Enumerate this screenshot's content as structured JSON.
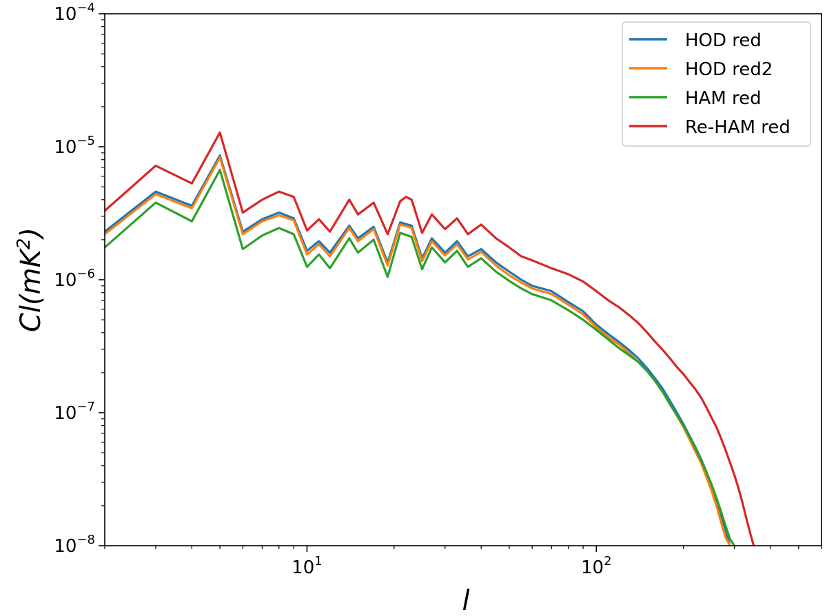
{
  "chart_data": {
    "type": "line",
    "xscale": "log",
    "yscale": "log",
    "xlim": [
      2,
      600
    ],
    "ylim": [
      1e-08,
      0.0001
    ],
    "xlabel": "l",
    "ylabel": "Cl(mK^2)",
    "xticks": [
      {
        "value": 10,
        "base": "10",
        "exp": "1"
      },
      {
        "value": 100,
        "base": "10",
        "exp": "2"
      }
    ],
    "yticks": [
      {
        "value": 1e-08,
        "base": "10",
        "exp": "−8"
      },
      {
        "value": 1e-07,
        "base": "10",
        "exp": "−7"
      },
      {
        "value": 1e-06,
        "base": "10",
        "exp": "−6"
      },
      {
        "value": 1e-05,
        "base": "10",
        "exp": "−5"
      },
      {
        "value": 0.0001,
        "base": "10",
        "exp": "−4"
      }
    ],
    "legend_position": "top-right",
    "grid": false,
    "series": [
      {
        "name": "HOD red",
        "color": "#1f77b4",
        "points": [
          [
            2,
            2.3e-06
          ],
          [
            3,
            4.6e-06
          ],
          [
            4,
            3.6e-06
          ],
          [
            5,
            8.6e-06
          ],
          [
            6,
            2.3e-06
          ],
          [
            7,
            2.85e-06
          ],
          [
            8,
            3.2e-06
          ],
          [
            9,
            2.9e-06
          ],
          [
            10,
            1.65e-06
          ],
          [
            11,
            1.95e-06
          ],
          [
            12,
            1.6e-06
          ],
          [
            14,
            2.55e-06
          ],
          [
            15,
            2.05e-06
          ],
          [
            17,
            2.5e-06
          ],
          [
            19,
            1.35e-06
          ],
          [
            21,
            2.7e-06
          ],
          [
            23,
            2.55e-06
          ],
          [
            25,
            1.45e-06
          ],
          [
            27,
            2.05e-06
          ],
          [
            30,
            1.6e-06
          ],
          [
            33,
            1.95e-06
          ],
          [
            36,
            1.5e-06
          ],
          [
            40,
            1.7e-06
          ],
          [
            45,
            1.35e-06
          ],
          [
            50,
            1.15e-06
          ],
          [
            55,
            1e-06
          ],
          [
            60,
            9e-07
          ],
          [
            70,
            8.2e-07
          ],
          [
            80,
            6.8e-07
          ],
          [
            90,
            5.8e-07
          ],
          [
            100,
            4.6e-07
          ],
          [
            110,
            3.9e-07
          ],
          [
            120,
            3.4e-07
          ],
          [
            130,
            2.95e-07
          ],
          [
            140,
            2.55e-07
          ],
          [
            150,
            2.15e-07
          ],
          [
            160,
            1.8e-07
          ],
          [
            170,
            1.5e-07
          ],
          [
            180,
            1.22e-07
          ],
          [
            190,
            1e-07
          ],
          [
            200,
            8.2e-08
          ],
          [
            210,
            6.7e-08
          ],
          [
            220,
            5.5e-08
          ],
          [
            230,
            4.5e-08
          ],
          [
            240,
            3.6e-08
          ],
          [
            250,
            2.8e-08
          ],
          [
            260,
            2.1e-08
          ],
          [
            270,
            1.6e-08
          ],
          [
            280,
            1.25e-08
          ],
          [
            290,
            1e-08
          ]
        ]
      },
      {
        "name": "HOD red2",
        "color": "#ff7f0e",
        "points": [
          [
            2,
            2.2e-06
          ],
          [
            3,
            4.4e-06
          ],
          [
            4,
            3.45e-06
          ],
          [
            5,
            8.3e-06
          ],
          [
            6,
            2.2e-06
          ],
          [
            7,
            2.75e-06
          ],
          [
            8,
            3.05e-06
          ],
          [
            9,
            2.8e-06
          ],
          [
            10,
            1.55e-06
          ],
          [
            11,
            1.85e-06
          ],
          [
            12,
            1.5e-06
          ],
          [
            14,
            2.45e-06
          ],
          [
            15,
            1.95e-06
          ],
          [
            17,
            2.4e-06
          ],
          [
            19,
            1.28e-06
          ],
          [
            21,
            2.6e-06
          ],
          [
            23,
            2.45e-06
          ],
          [
            25,
            1.38e-06
          ],
          [
            27,
            1.95e-06
          ],
          [
            30,
            1.52e-06
          ],
          [
            33,
            1.85e-06
          ],
          [
            36,
            1.42e-06
          ],
          [
            40,
            1.62e-06
          ],
          [
            45,
            1.28e-06
          ],
          [
            50,
            1.08e-06
          ],
          [
            55,
            9.5e-07
          ],
          [
            60,
            8.6e-07
          ],
          [
            70,
            7.8e-07
          ],
          [
            80,
            6.5e-07
          ],
          [
            90,
            5.5e-07
          ],
          [
            100,
            4.4e-07
          ],
          [
            110,
            3.7e-07
          ],
          [
            120,
            3.25e-07
          ],
          [
            130,
            2.8e-07
          ],
          [
            140,
            2.4e-07
          ],
          [
            150,
            2.05e-07
          ],
          [
            160,
            1.72e-07
          ],
          [
            170,
            1.42e-07
          ],
          [
            180,
            1.15e-07
          ],
          [
            190,
            9.5e-08
          ],
          [
            200,
            7.8e-08
          ],
          [
            210,
            6.3e-08
          ],
          [
            220,
            5.1e-08
          ],
          [
            230,
            4.2e-08
          ],
          [
            240,
            3.3e-08
          ],
          [
            250,
            2.6e-08
          ],
          [
            260,
            2e-08
          ],
          [
            270,
            1.5e-08
          ],
          [
            280,
            1.15e-08
          ],
          [
            290,
            1e-08
          ]
        ]
      },
      {
        "name": "HAM red",
        "color": "#2ca02c",
        "points": [
          [
            2,
            1.75e-06
          ],
          [
            3,
            3.8e-06
          ],
          [
            4,
            2.75e-06
          ],
          [
            5,
            6.7e-06
          ],
          [
            6,
            1.7e-06
          ],
          [
            7,
            2.15e-06
          ],
          [
            8,
            2.45e-06
          ],
          [
            9,
            2.2e-06
          ],
          [
            10,
            1.25e-06
          ],
          [
            11,
            1.55e-06
          ],
          [
            12,
            1.22e-06
          ],
          [
            14,
            2.05e-06
          ],
          [
            15,
            1.6e-06
          ],
          [
            17,
            2e-06
          ],
          [
            19,
            1.05e-06
          ],
          [
            21,
            2.25e-06
          ],
          [
            23,
            2.1e-06
          ],
          [
            25,
            1.2e-06
          ],
          [
            27,
            1.75e-06
          ],
          [
            30,
            1.35e-06
          ],
          [
            33,
            1.65e-06
          ],
          [
            36,
            1.25e-06
          ],
          [
            40,
            1.45e-06
          ],
          [
            45,
            1.15e-06
          ],
          [
            50,
            9.8e-07
          ],
          [
            55,
            8.6e-07
          ],
          [
            60,
            7.8e-07
          ],
          [
            70,
            7e-07
          ],
          [
            80,
            5.9e-07
          ],
          [
            90,
            5e-07
          ],
          [
            100,
            4.2e-07
          ],
          [
            110,
            3.55e-07
          ],
          [
            120,
            3.05e-07
          ],
          [
            130,
            2.7e-07
          ],
          [
            140,
            2.4e-07
          ],
          [
            150,
            2.05e-07
          ],
          [
            160,
            1.72e-07
          ],
          [
            170,
            1.42e-07
          ],
          [
            180,
            1.15e-07
          ],
          [
            190,
            9.6e-08
          ],
          [
            200,
            8e-08
          ],
          [
            210,
            6.6e-08
          ],
          [
            220,
            5.4e-08
          ],
          [
            230,
            4.4e-08
          ],
          [
            240,
            3.6e-08
          ],
          [
            250,
            2.9e-08
          ],
          [
            260,
            2.3e-08
          ],
          [
            270,
            1.8e-08
          ],
          [
            280,
            1.4e-08
          ],
          [
            290,
            1.12e-08
          ],
          [
            300,
            1e-08
          ]
        ]
      },
      {
        "name": "Re-HAM red",
        "color": "#d62728",
        "points": [
          [
            2,
            3.3e-06
          ],
          [
            3,
            7.2e-06
          ],
          [
            4,
            5.3e-06
          ],
          [
            5,
            1.28e-05
          ],
          [
            6,
            3.2e-06
          ],
          [
            7,
            4e-06
          ],
          [
            8,
            4.6e-06
          ],
          [
            9,
            4.2e-06
          ],
          [
            10,
            2.35e-06
          ],
          [
            11,
            2.85e-06
          ],
          [
            12,
            2.3e-06
          ],
          [
            14,
            4e-06
          ],
          [
            15,
            3.1e-06
          ],
          [
            17,
            3.8e-06
          ],
          [
            19,
            2.2e-06
          ],
          [
            21,
            3.9e-06
          ],
          [
            22,
            4.2e-06
          ],
          [
            23,
            4e-06
          ],
          [
            25,
            2.25e-06
          ],
          [
            27,
            3.1e-06
          ],
          [
            30,
            2.4e-06
          ],
          [
            33,
            2.9e-06
          ],
          [
            36,
            2.2e-06
          ],
          [
            40,
            2.6e-06
          ],
          [
            45,
            2.05e-06
          ],
          [
            50,
            1.75e-06
          ],
          [
            55,
            1.5e-06
          ],
          [
            60,
            1.4e-06
          ],
          [
            70,
            1.22e-06
          ],
          [
            80,
            1.1e-06
          ],
          [
            90,
            9.7e-07
          ],
          [
            100,
            8.2e-07
          ],
          [
            110,
            7e-07
          ],
          [
            120,
            6.2e-07
          ],
          [
            130,
            5.4e-07
          ],
          [
            140,
            4.7e-07
          ],
          [
            150,
            4e-07
          ],
          [
            160,
            3.4e-07
          ],
          [
            170,
            2.95e-07
          ],
          [
            180,
            2.55e-07
          ],
          [
            190,
            2.2e-07
          ],
          [
            200,
            1.95e-07
          ],
          [
            210,
            1.7e-07
          ],
          [
            220,
            1.5e-07
          ],
          [
            230,
            1.3e-07
          ],
          [
            240,
            1.1e-07
          ],
          [
            250,
            9.2e-08
          ],
          [
            260,
            7.8e-08
          ],
          [
            270,
            6.4e-08
          ],
          [
            280,
            5.2e-08
          ],
          [
            290,
            4.2e-08
          ],
          [
            300,
            3.4e-08
          ],
          [
            310,
            2.7e-08
          ],
          [
            320,
            2.1e-08
          ],
          [
            330,
            1.6e-08
          ],
          [
            340,
            1.25e-08
          ],
          [
            350,
            1e-08
          ]
        ]
      }
    ]
  }
}
